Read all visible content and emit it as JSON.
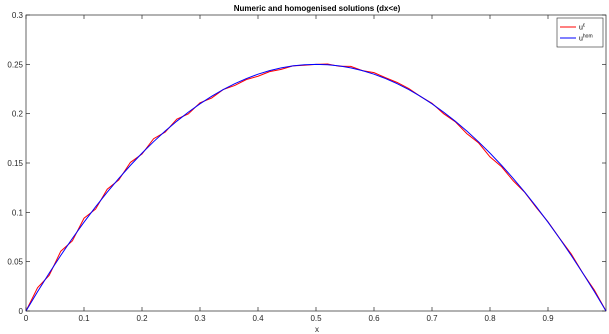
{
  "chart_data": {
    "type": "line",
    "title": "Numeric and homogenised solutions (dx<e)",
    "xlabel": "x",
    "ylabel": "",
    "xlim": [
      0,
      1
    ],
    "ylim": [
      0,
      0.3
    ],
    "x_ticks": [
      0,
      0.1,
      0.2,
      0.3,
      0.4,
      0.5,
      0.6,
      0.7,
      0.8,
      0.9
    ],
    "x_tick_labels": [
      "0",
      "0.1",
      "0.2",
      "0.3",
      "0.4",
      "0.5",
      "0.6",
      "0.7",
      "0.8",
      "0.9"
    ],
    "y_ticks": [
      0,
      0.05,
      0.1,
      0.15,
      0.2,
      0.25,
      0.3
    ],
    "y_tick_labels": [
      "0",
      "0.05",
      "0.1",
      "0.15",
      "0.2",
      "0.25",
      "0.3"
    ],
    "grid": false,
    "legend_position": "top-right",
    "series": [
      {
        "name": "u",
        "name_sup": "ε",
        "color": "#ff0000",
        "x": [
          0,
          0.02,
          0.04,
          0.06,
          0.08,
          0.1,
          0.12,
          0.14,
          0.16,
          0.18,
          0.2,
          0.22,
          0.24,
          0.26,
          0.28,
          0.3,
          0.32,
          0.34,
          0.36,
          0.38,
          0.4,
          0.42,
          0.44,
          0.46,
          0.48,
          0.5,
          0.52,
          0.54,
          0.56,
          0.58,
          0.6,
          0.62,
          0.64,
          0.66,
          0.68,
          0.7,
          0.72,
          0.74,
          0.76,
          0.78,
          0.8,
          0.82,
          0.84,
          0.86,
          0.88,
          0.9,
          0.92,
          0.94,
          0.96,
          0.98,
          1.0
        ],
        "y": [
          0,
          0.0236,
          0.0361,
          0.0606,
          0.0711,
          0.094,
          0.1033,
          0.1234,
          0.1329,
          0.1506,
          0.1591,
          0.1746,
          0.1813,
          0.1944,
          0.1998,
          0.211,
          0.2158,
          0.2244,
          0.2286,
          0.2346,
          0.2379,
          0.2426,
          0.2449,
          0.2484,
          0.2491,
          0.25,
          0.2503,
          0.248,
          0.2479,
          0.2436,
          0.2416,
          0.2364,
          0.2316,
          0.2255,
          0.2175,
          0.2105,
          0.2,
          0.1919,
          0.1798,
          0.1706,
          0.1562,
          0.1462,
          0.132,
          0.1202,
          0.1047,
          0.0904,
          0.0737,
          0.0579,
          0.0384,
          0.0211,
          0.0
        ]
      },
      {
        "name": "u",
        "name_sup": "hom",
        "color": "#0000ff",
        "x": [
          0,
          0.02,
          0.04,
          0.06,
          0.08,
          0.1,
          0.12,
          0.14,
          0.16,
          0.18,
          0.2,
          0.22,
          0.24,
          0.26,
          0.28,
          0.3,
          0.32,
          0.34,
          0.36,
          0.38,
          0.4,
          0.42,
          0.44,
          0.46,
          0.48,
          0.5,
          0.52,
          0.54,
          0.56,
          0.58,
          0.6,
          0.62,
          0.64,
          0.66,
          0.68,
          0.7,
          0.72,
          0.74,
          0.76,
          0.78,
          0.8,
          0.82,
          0.84,
          0.86,
          0.88,
          0.9,
          0.92,
          0.94,
          0.96,
          0.98,
          1.0
        ],
        "y": [
          0,
          0.0196,
          0.0384,
          0.0564,
          0.0736,
          0.09,
          0.1056,
          0.1204,
          0.1344,
          0.1476,
          0.16,
          0.1716,
          0.1824,
          0.1924,
          0.2016,
          0.21,
          0.2176,
          0.2244,
          0.2304,
          0.2356,
          0.24,
          0.2436,
          0.2464,
          0.2484,
          0.2496,
          0.25,
          0.2496,
          0.2484,
          0.2464,
          0.2436,
          0.24,
          0.2356,
          0.2304,
          0.2244,
          0.2176,
          0.21,
          0.2016,
          0.1924,
          0.1824,
          0.1716,
          0.16,
          0.1476,
          0.1344,
          0.1204,
          0.1056,
          0.09,
          0.0736,
          0.0564,
          0.0384,
          0.0196,
          0.0
        ]
      }
    ]
  }
}
